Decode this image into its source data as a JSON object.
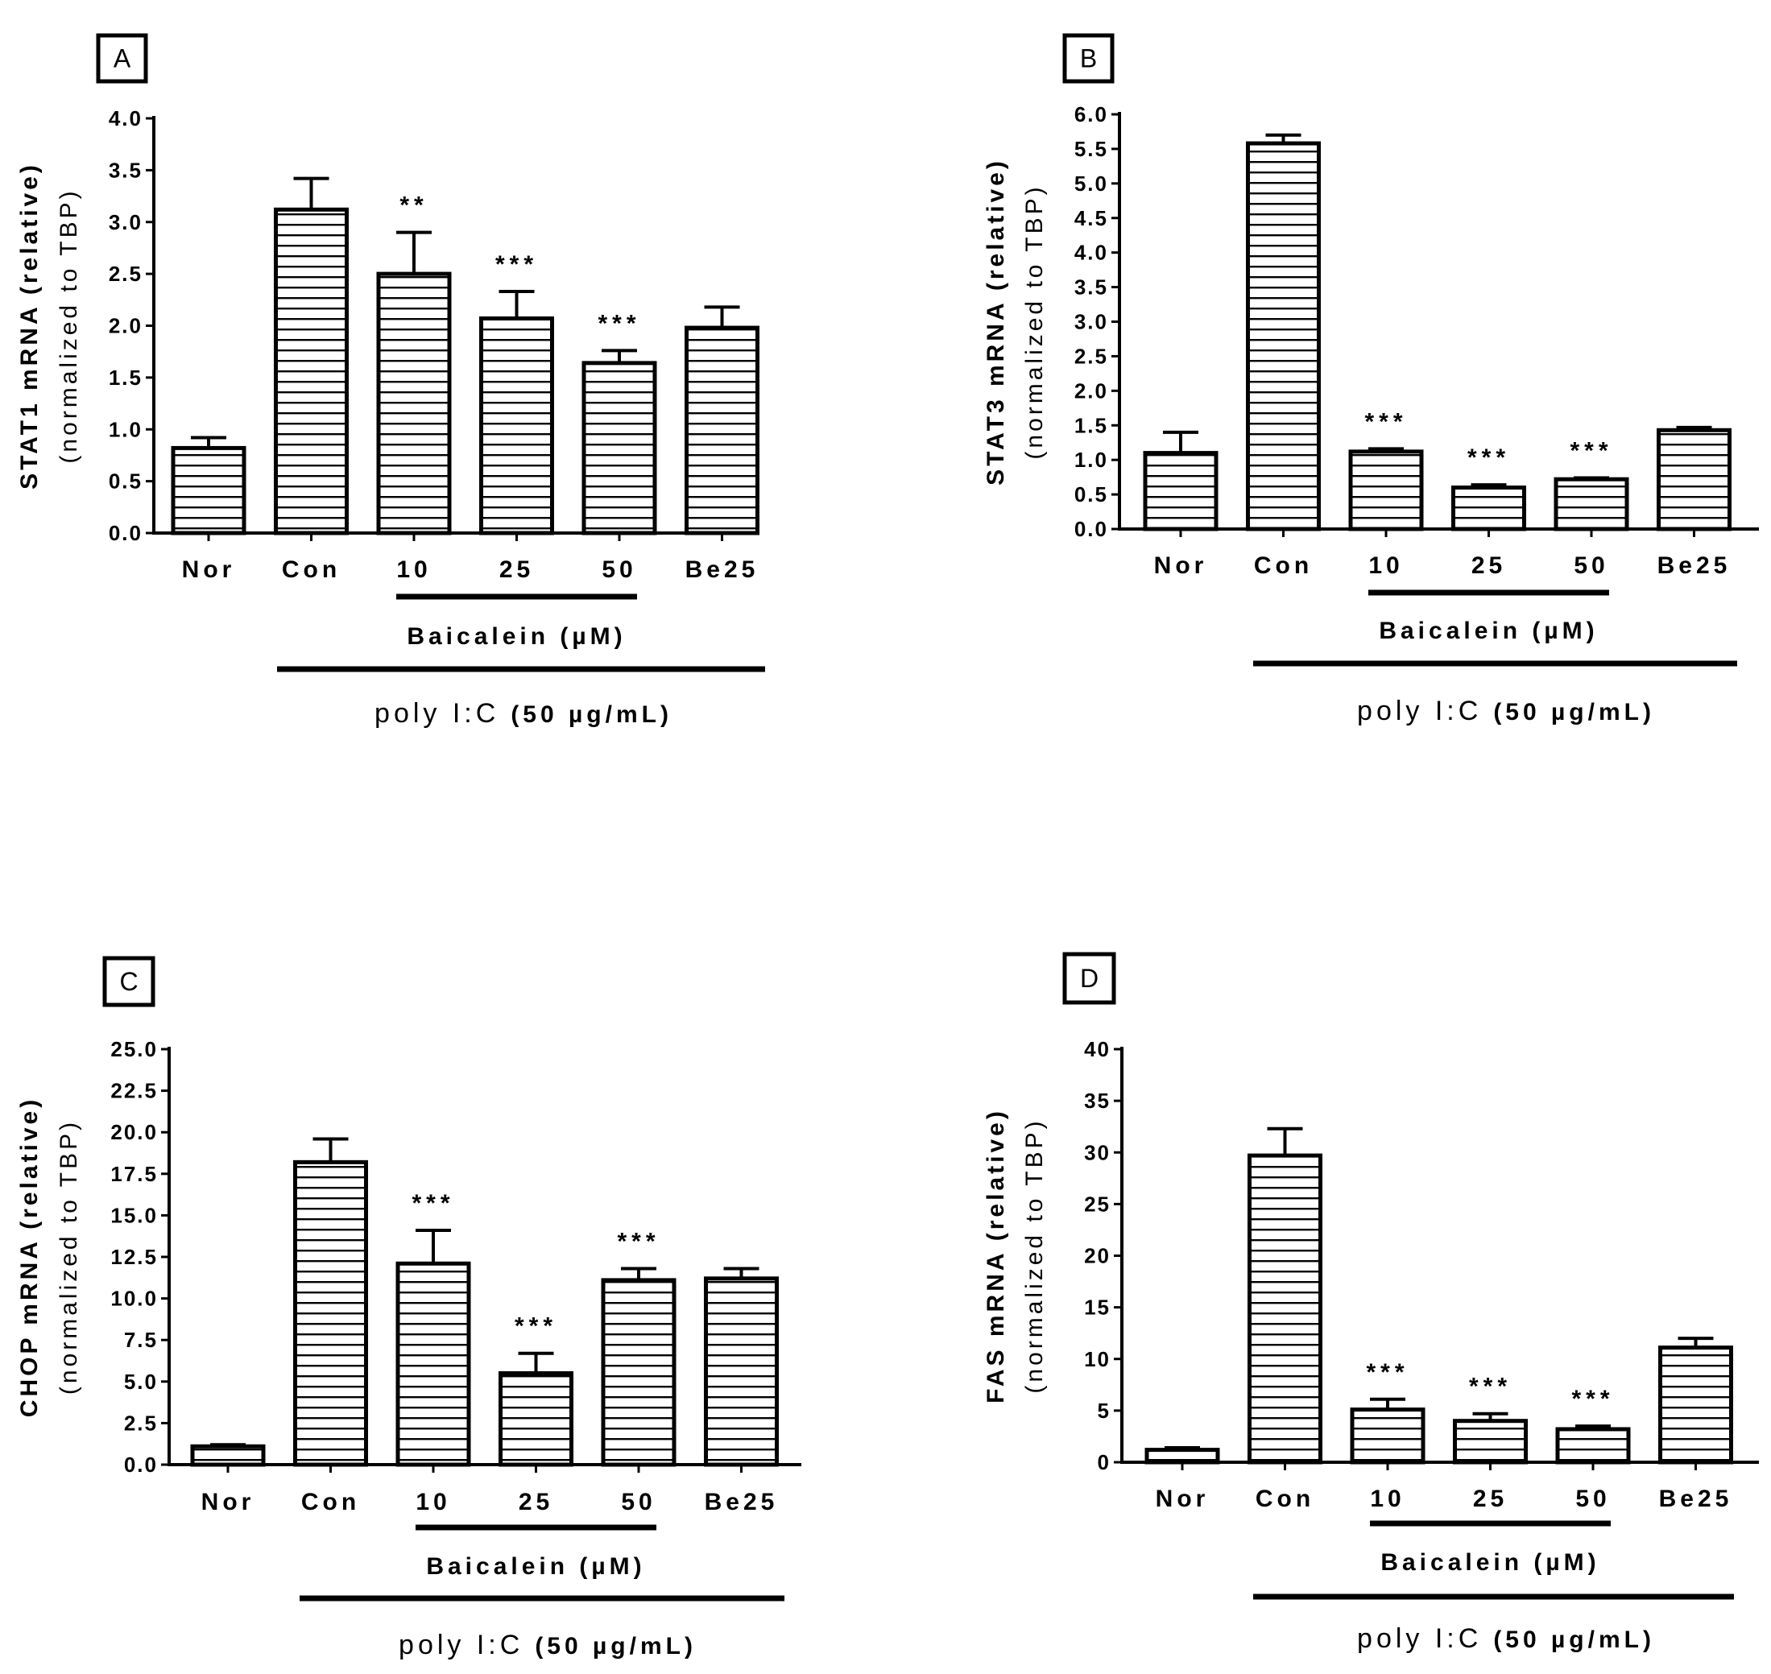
{
  "chart_data": [
    {
      "type": "bar",
      "panel_label": "A",
      "categories": [
        "Nor",
        "Con",
        "10",
        "25",
        "50",
        "Be25"
      ],
      "values": [
        0.82,
        3.12,
        2.5,
        2.07,
        1.64,
        1.98
      ],
      "errors": [
        0.1,
        0.3,
        0.4,
        0.26,
        0.12,
        0.2
      ],
      "significance": [
        "",
        "",
        "**",
        "***",
        "***",
        ""
      ],
      "ylim": [
        0,
        4
      ],
      "yticks": [
        "0.0",
        "0.5",
        "1.0",
        "1.5",
        "2.0",
        "2.5",
        "3.0",
        "3.5",
        "4.0"
      ],
      "ylabel_line1": "STAT1 mRNA (relative)",
      "ylabel_line2": "(normalized to TBP)",
      "group_label": "Baicalein (µM)",
      "treatment_label": "poly I:C",
      "treatment_dose": "(50 µg/mL)"
    },
    {
      "type": "bar",
      "panel_label": "B",
      "categories": [
        "Nor",
        "Con",
        "10",
        "25",
        "50",
        "Be25"
      ],
      "values": [
        1.1,
        5.58,
        1.12,
        0.6,
        0.72,
        1.43
      ],
      "errors": [
        0.3,
        0.12,
        0.04,
        0.04,
        0.02,
        0.04
      ],
      "significance": [
        "",
        "",
        "***",
        "***",
        "***",
        ""
      ],
      "ylim": [
        0,
        6
      ],
      "yticks": [
        "0.0",
        "0.5",
        "1.0",
        "1.5",
        "2.0",
        "2.5",
        "3.0",
        "3.5",
        "4.0",
        "4.5",
        "5.0",
        "5.5",
        "6.0"
      ],
      "ylabel_line1": "STAT3 mRNA (relative)",
      "ylabel_line2": "(normalized to TBP)",
      "group_label": "Baicalein (µM)",
      "treatment_label": "poly I:C",
      "treatment_dose": "(50 µg/mL)"
    },
    {
      "type": "bar",
      "panel_label": "C",
      "categories": [
        "Nor",
        "Con",
        "10",
        "25",
        "50",
        "Be25"
      ],
      "values": [
        1.1,
        18.2,
        12.1,
        5.5,
        11.1,
        11.2
      ],
      "errors": [
        0.1,
        1.4,
        2.0,
        1.2,
        0.7,
        0.6
      ],
      "significance": [
        "",
        "",
        "***",
        "***",
        "***",
        ""
      ],
      "ylim": [
        0,
        25
      ],
      "yticks": [
        "0.0",
        "2.5",
        "5.0",
        "7.5",
        "10.0",
        "12.5",
        "15.0",
        "17.5",
        "20.0",
        "22.5",
        "25.0"
      ],
      "ylabel_line1": "CHOP mRNA (relative)",
      "ylabel_line2": "(normalized to TBP)",
      "group_label": "Baicalein (µM)",
      "treatment_label": "poly I:C",
      "treatment_dose": "(50 µg/mL)"
    },
    {
      "type": "bar",
      "panel_label": "D",
      "categories": [
        "Nor",
        "Con",
        "10",
        "25",
        "50",
        "Be25"
      ],
      "values": [
        1.2,
        29.7,
        5.1,
        4.0,
        3.2,
        11.1
      ],
      "errors": [
        0.2,
        2.6,
        1.0,
        0.7,
        0.3,
        0.9
      ],
      "significance": [
        "",
        "",
        "***",
        "***",
        "***",
        ""
      ],
      "ylim": [
        0,
        40
      ],
      "yticks": [
        "0",
        "5",
        "10",
        "15",
        "20",
        "25",
        "30",
        "35",
        "40"
      ],
      "ylabel_line1": "FAS mRNA (relative)",
      "ylabel_line2": "(normalized to TBP)",
      "group_label": "Baicalein (µM)",
      "treatment_label": "poly I:C",
      "treatment_dose": "(50 µg/mL)"
    }
  ]
}
